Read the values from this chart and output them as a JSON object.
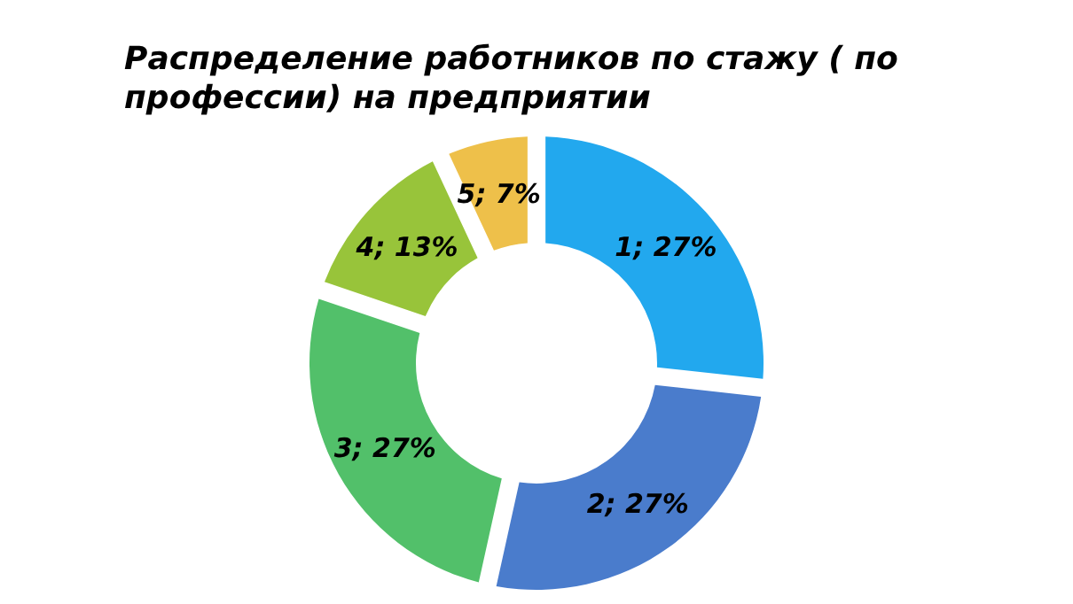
{
  "chart_data": {
    "type": "donut",
    "title": "Распределение работников по стажу ( по профессии) на предприятии",
    "categories": [
      "1",
      "2",
      "3",
      "4",
      "5"
    ],
    "values": [
      27,
      27,
      27,
      13,
      7
    ],
    "colors": [
      "#22a8ee",
      "#4a7ccc",
      "#52c06a",
      "#98c43a",
      "#eec04a"
    ],
    "value_labels": [
      "27%",
      "27%",
      "27%",
      "13%",
      "7%"
    ],
    "legend": false
  }
}
